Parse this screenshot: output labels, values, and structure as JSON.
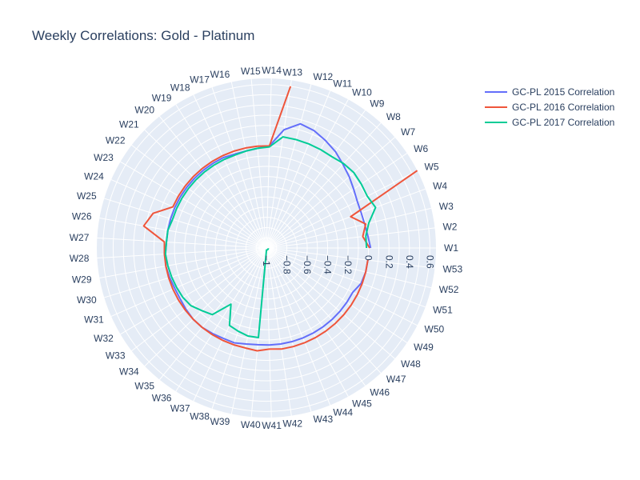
{
  "chart_data": {
    "type": "polar-line",
    "title": "Weekly Correlations: Gold - Platinum",
    "angular_categories": [
      "W1",
      "W2",
      "W3",
      "W4",
      "W5",
      "W6",
      "W7",
      "W8",
      "W9",
      "W10",
      "W11",
      "W12",
      "W13",
      "W14",
      "W15",
      "W16",
      "W17",
      "W18",
      "W19",
      "W20",
      "W21",
      "W22",
      "W23",
      "W24",
      "W25",
      "W26",
      "W27",
      "W28",
      "W29",
      "W30",
      "W31",
      "W32",
      "W33",
      "W34",
      "W35",
      "W36",
      "W37",
      "W38",
      "W39",
      "W40",
      "W41",
      "W42",
      "W43",
      "W44",
      "W45",
      "W46",
      "W47",
      "W48",
      "W49",
      "W50",
      "W51",
      "W52",
      "W53"
    ],
    "radial_range": [
      -1,
      0.66
    ],
    "radial_ticks": [
      {
        "v": -1,
        "label": "−1"
      },
      {
        "v": -0.8,
        "label": "−0.8"
      },
      {
        "v": -0.6,
        "label": "−0.6"
      },
      {
        "v": -0.4,
        "label": "−0.4"
      },
      {
        "v": -0.2,
        "label": "−0.2"
      },
      {
        "v": 0,
        "label": "0"
      },
      {
        "v": 0.2,
        "label": "0.2"
      },
      {
        "v": 0.4,
        "label": "0.4"
      },
      {
        "v": 0.6,
        "label": "0.6"
      }
    ],
    "radial_minor_gridlines": [
      -0.9,
      -0.7,
      -0.5,
      -0.3,
      -0.1,
      0.1,
      0.3,
      0.5
    ],
    "legend_position": "top-right",
    "grid": true,
    "series": [
      {
        "name": "GC-PL 2015 Correlation",
        "color": "#636efa",
        "values": [
          0.02,
          0.0,
          -0.01,
          -0.01,
          0.0,
          0.03,
          0.07,
          0.11,
          0.16,
          0.2,
          0.24,
          0.26,
          0.17,
          0.0,
          -0.02,
          -0.03,
          -0.03,
          -0.02,
          -0.02,
          -0.02,
          -0.02,
          -0.02,
          -0.02,
          -0.02,
          -0.02,
          -0.02,
          -0.02,
          -0.01,
          0.0,
          -0.01,
          -0.02,
          -0.02,
          -0.01,
          0.0,
          0.0,
          -0.01,
          -0.02,
          -0.02,
          -0.04,
          -0.05,
          -0.05,
          -0.05,
          -0.05,
          -0.05,
          -0.05,
          -0.05,
          -0.05,
          -0.05,
          -0.05,
          -0.05,
          -0.01,
          0.0,
          0.0
        ]
      },
      {
        "name": "GC-PL 2016 Correlation",
        "color": "#EF553B",
        "values": [
          0.01,
          -0.05,
          0.0,
          -0.12,
          0.66,
          null,
          null,
          null,
          null,
          null,
          null,
          null,
          0.6,
          0.0,
          0.0,
          0.0,
          0.0,
          0.0,
          0.0,
          0.0,
          0.0,
          0.0,
          0.0,
          0.0,
          0.16,
          0.22,
          0.0,
          0.0,
          0.0,
          0.0,
          0.0,
          0.0,
          0.0,
          0.0,
          0.0,
          0.0,
          0.0,
          0.0,
          0.0,
          0.01,
          -0.01,
          0.0,
          0.0,
          0.0,
          0.0,
          0.0,
          0.0,
          0.0,
          0.0,
          0.0,
          0.0,
          0.0,
          0.0
        ]
      },
      {
        "name": "GC-PL 2017 Correlation",
        "color": "#00cc96",
        "values": [
          -0.02,
          -0.02,
          0.03,
          0.14,
          0.11,
          0.12,
          0.13,
          0.12,
          0.1,
          0.1,
          0.1,
          0.1,
          0.1,
          -0.01,
          -0.02,
          -0.03,
          -0.04,
          -0.04,
          -0.04,
          -0.04,
          -0.04,
          -0.04,
          -0.04,
          -0.04,
          -0.04,
          -0.02,
          -0.02,
          -0.01,
          -0.02,
          -0.03,
          -0.04,
          -0.05,
          -0.07,
          -0.12,
          -0.16,
          -0.35,
          -0.16,
          -0.14,
          -0.12,
          -0.12,
          -0.98,
          -0.98,
          -0.98,
          -0.98,
          -0.98,
          -0.98,
          -0.98,
          -0.98,
          -0.98,
          -0.98,
          -0.98,
          -0.98,
          -0.98
        ]
      }
    ]
  }
}
